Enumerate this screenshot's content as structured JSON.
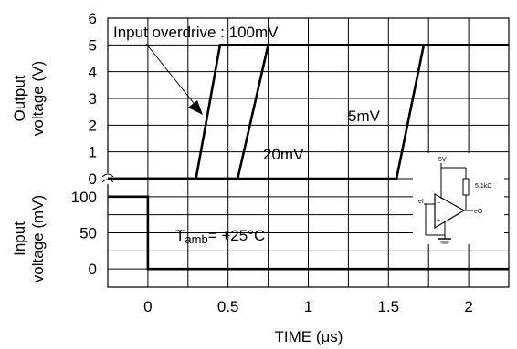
{
  "chart_data": {
    "type": "line",
    "x_label": "TIME (μs)",
    "x_ticks": [
      "0",
      "0.5",
      "1",
      "1.5",
      "2"
    ],
    "x_range": [
      -0.25,
      2.25
    ],
    "top_panel": {
      "y_label_lines": [
        "Output",
        "voltage (V)"
      ],
      "y_ticks": [
        "0",
        "1",
        "2",
        "3",
        "4",
        "5",
        "6"
      ],
      "y_range": [
        0,
        6
      ],
      "series": [
        {
          "name": "100mV",
          "x": [
            -0.25,
            0.3,
            0.45,
            2.25
          ],
          "y": [
            0,
            0,
            5,
            5
          ]
        },
        {
          "name": "20mV",
          "x": [
            -0.25,
            0.56,
            0.75,
            2.25
          ],
          "y": [
            0,
            0,
            5,
            5
          ]
        },
        {
          "name": "5mV",
          "x": [
            -0.25,
            1.55,
            1.72,
            2.25
          ],
          "y": [
            0,
            0,
            5,
            5
          ]
        }
      ],
      "annotations": {
        "overdrive": "Input overdrive : 100mV",
        "label_5mv": "5mV",
        "label_20mv": "20mV"
      }
    },
    "bottom_panel": {
      "y_label_lines": [
        "Input",
        "voltage (mV)"
      ],
      "y_ticks": [
        "100",
        "50",
        "0"
      ],
      "y_range": [
        -25,
        125
      ],
      "series": [
        {
          "name": "input",
          "x": [
            -0.25,
            0,
            0,
            2.25
          ],
          "y": [
            100,
            100,
            0,
            0
          ]
        }
      ],
      "temperature": {
        "prefix": "T",
        "subscript": "amb",
        "value": "= +25°C"
      }
    },
    "circuit": {
      "supply": "5V",
      "resistor": "5.1kΩ",
      "input": "eI",
      "output": "eO"
    },
    "grid": true
  }
}
